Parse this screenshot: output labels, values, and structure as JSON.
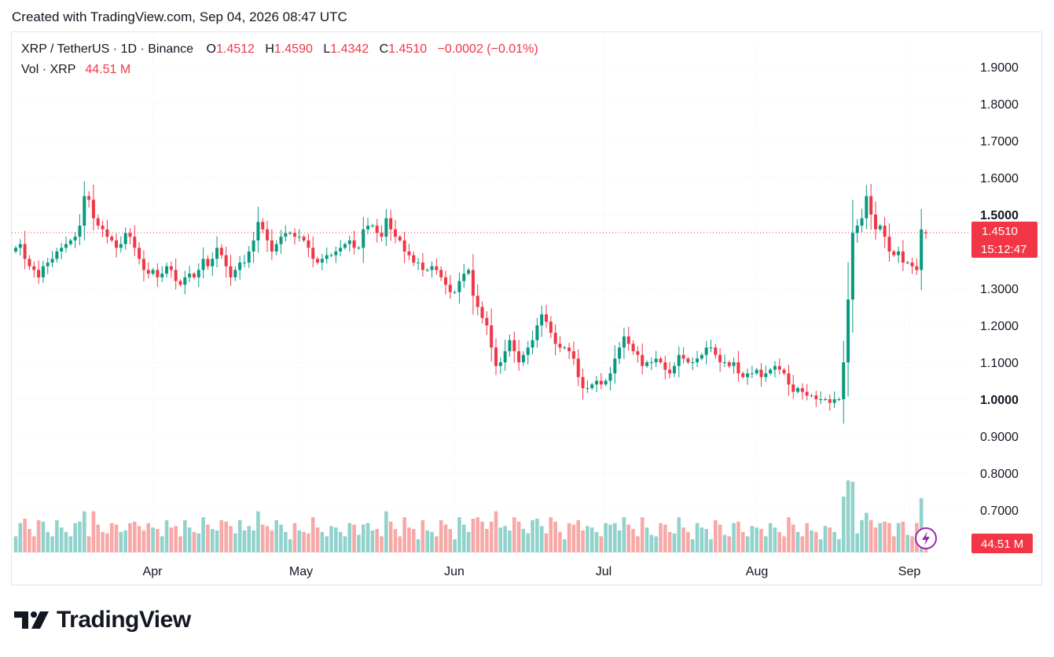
{
  "header": {
    "created_text": "Created with TradingView.com, Sep 04, 2026 08:47 UTC"
  },
  "legend": {
    "symbol": "XRP / TetherUS · 1D · Binance",
    "o_label": "O",
    "o_value": "1.4512",
    "h_label": "H",
    "h_value": "1.4590",
    "l_label": "L",
    "l_value": "1.4342",
    "c_label": "C",
    "c_value": "1.4510",
    "change": "−0.0002 (−0.01%)",
    "vol_label": "Vol · XRP",
    "vol_value": "44.51 M"
  },
  "price_tag": {
    "price": "1.4510",
    "countdown": "15:12:47"
  },
  "volume_tag": "44.51 M",
  "colors": {
    "up": "#089981",
    "down": "#f23645",
    "up_vol": "#92d2cc",
    "down_vol": "#f7a9a7",
    "grid": "#eef0f3"
  },
  "icons": {
    "flash": "lightning-bolt-icon",
    "brand": "tradingview-logo"
  },
  "brand": {
    "name": "TradingView"
  },
  "chart_data": {
    "type": "candlestick",
    "interval": "1D",
    "y_axis_ticks": [
      "1.9000",
      "1.8000",
      "1.7000",
      "1.6000",
      "1.5000",
      "1.3000",
      "1.2000",
      "1.1000",
      "1.0000",
      "0.9000",
      "0.8000",
      "0.7000"
    ],
    "y_axis_bold_ticks": [
      "1.5000",
      "1.0000"
    ],
    "x_axis_labels": [
      "Apr",
      "May",
      "Jun",
      "Jul",
      "Aug",
      "Sep"
    ],
    "ylim": [
      0.6,
      2.0
    ],
    "close_series": [
      1.41,
      1.42,
      1.38,
      1.36,
      1.35,
      1.33,
      1.36,
      1.37,
      1.38,
      1.4,
      1.41,
      1.42,
      1.43,
      1.44,
      1.47,
      1.55,
      1.54,
      1.49,
      1.47,
      1.46,
      1.44,
      1.43,
      1.41,
      1.42,
      1.45,
      1.44,
      1.41,
      1.38,
      1.35,
      1.34,
      1.35,
      1.33,
      1.34,
      1.36,
      1.35,
      1.32,
      1.31,
      1.33,
      1.34,
      1.33,
      1.35,
      1.38,
      1.36,
      1.38,
      1.41,
      1.39,
      1.36,
      1.33,
      1.35,
      1.37,
      1.37,
      1.4,
      1.43,
      1.48,
      1.46,
      1.43,
      1.4,
      1.42,
      1.44,
      1.45,
      1.45,
      1.44,
      1.44,
      1.43,
      1.41,
      1.38,
      1.37,
      1.38,
      1.39,
      1.39,
      1.4,
      1.41,
      1.42,
      1.43,
      1.41,
      1.41,
      1.46,
      1.47,
      1.47,
      1.45,
      1.44,
      1.49,
      1.46,
      1.44,
      1.43,
      1.4,
      1.39,
      1.37,
      1.37,
      1.35,
      1.35,
      1.36,
      1.35,
      1.33,
      1.31,
      1.29,
      1.29,
      1.32,
      1.34,
      1.35,
      1.28,
      1.25,
      1.22,
      1.2,
      1.14,
      1.09,
      1.1,
      1.13,
      1.16,
      1.13,
      1.1,
      1.12,
      1.14,
      1.16,
      1.2,
      1.23,
      1.21,
      1.18,
      1.15,
      1.14,
      1.14,
      1.13,
      1.11,
      1.06,
      1.03,
      1.03,
      1.04,
      1.05,
      1.04,
      1.05,
      1.07,
      1.11,
      1.14,
      1.17,
      1.15,
      1.13,
      1.12,
      1.09,
      1.1,
      1.1,
      1.11,
      1.1,
      1.08,
      1.07,
      1.09,
      1.12,
      1.11,
      1.1,
      1.1,
      1.11,
      1.12,
      1.14,
      1.14,
      1.12,
      1.1,
      1.1,
      1.09,
      1.1,
      1.07,
      1.06,
      1.07,
      1.07,
      1.08,
      1.06,
      1.07,
      1.08,
      1.09,
      1.08,
      1.07,
      1.04,
      1.02,
      1.03,
      1.02,
      1.01,
      1.01,
      1.0,
      1.0,
      1.0,
      0.99,
      1.0,
      1.0,
      1.1,
      1.27,
      1.45,
      1.47,
      1.49,
      1.55,
      1.5,
      1.46,
      1.47,
      1.44,
      1.4,
      1.39,
      1.4,
      1.37,
      1.37,
      1.36,
      1.35,
      1.46,
      1.451
    ],
    "last_close": 1.451,
    "last_open": 1.4512,
    "last_high": 1.459,
    "last_low": 1.4342,
    "last_volume": "44.51 M",
    "volume_peak_note": "largest volume bar occurs on the day of the breakout above 1.5000"
  }
}
